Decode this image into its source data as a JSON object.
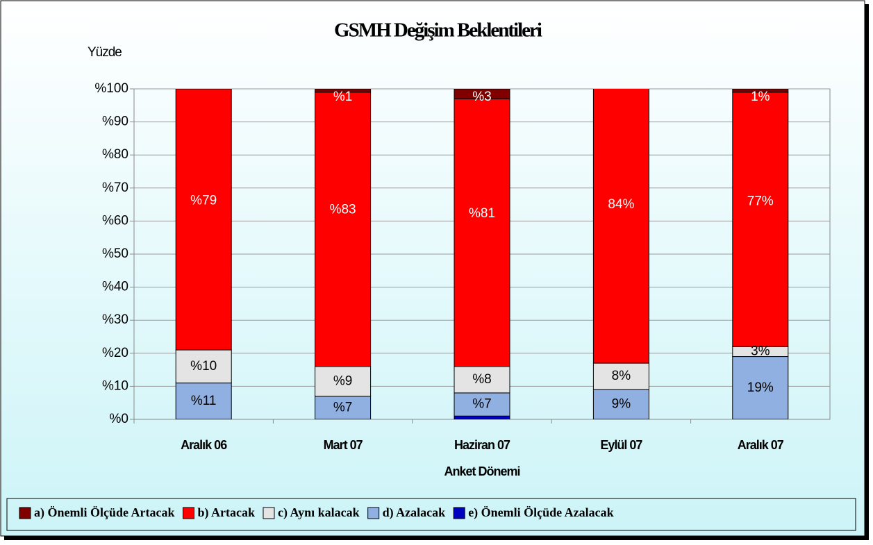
{
  "chart_data": {
    "type": "stacked_bar",
    "title": "GSMH Değişim Beklentileri",
    "y_label": "Yüzde",
    "x_label": "Anket Dönemi",
    "categories": [
      "Aralık 06",
      "Mart 07",
      "Haziran 07",
      "Eylül 07",
      "Aralık 07"
    ],
    "series": [
      {
        "name": "e) Önemli Ölçüde Azalacak",
        "color": "#0000c0",
        "values": [
          0,
          0,
          1,
          0,
          0
        ],
        "value_labels": [
          null,
          null,
          null,
          null,
          null
        ]
      },
      {
        "name": "d)  Azalacak",
        "color": "#8fb0e0",
        "values": [
          11,
          7,
          7,
          9,
          19
        ],
        "value_labels": [
          "%11",
          "%7",
          "%7",
          "9%",
          "19%"
        ]
      },
      {
        "name": "c) Aynı kalacak",
        "color": "#e4e4e4",
        "values": [
          10,
          9,
          8,
          8,
          3
        ],
        "value_labels": [
          "%10",
          "%9",
          "%8",
          "8%",
          "3%"
        ]
      },
      {
        "name": "b) Artacak",
        "color": "#ff0000",
        "values": [
          79,
          83,
          81,
          84,
          77
        ],
        "value_labels": [
          "%79",
          "%83",
          "%81",
          "84%",
          "77%"
        ]
      },
      {
        "name": "a) Önemli Ölçüde Artacak",
        "color": "#800000",
        "values": [
          0,
          1,
          3,
          0,
          1
        ],
        "value_labels": [
          null,
          "%1",
          "%3",
          null,
          "1%"
        ]
      }
    ],
    "legend_order": [
      4,
      3,
      2,
      1,
      0
    ],
    "ylim": [
      0,
      100
    ],
    "yticks": [
      {
        "value": 0,
        "label": "%0"
      },
      {
        "value": 10,
        "label": "%10"
      },
      {
        "value": 20,
        "label": "%20"
      },
      {
        "value": 30,
        "label": "%30"
      },
      {
        "value": 40,
        "label": "%40"
      },
      {
        "value": 50,
        "label": "%50"
      },
      {
        "value": 60,
        "label": "%60"
      },
      {
        "value": 70,
        "label": "%70"
      },
      {
        "value": 80,
        "label": "%80"
      },
      {
        "value": 90,
        "label": "%90"
      },
      {
        "value": 100,
        "label": "%100"
      }
    ],
    "grid": true,
    "legend": "bottom"
  }
}
